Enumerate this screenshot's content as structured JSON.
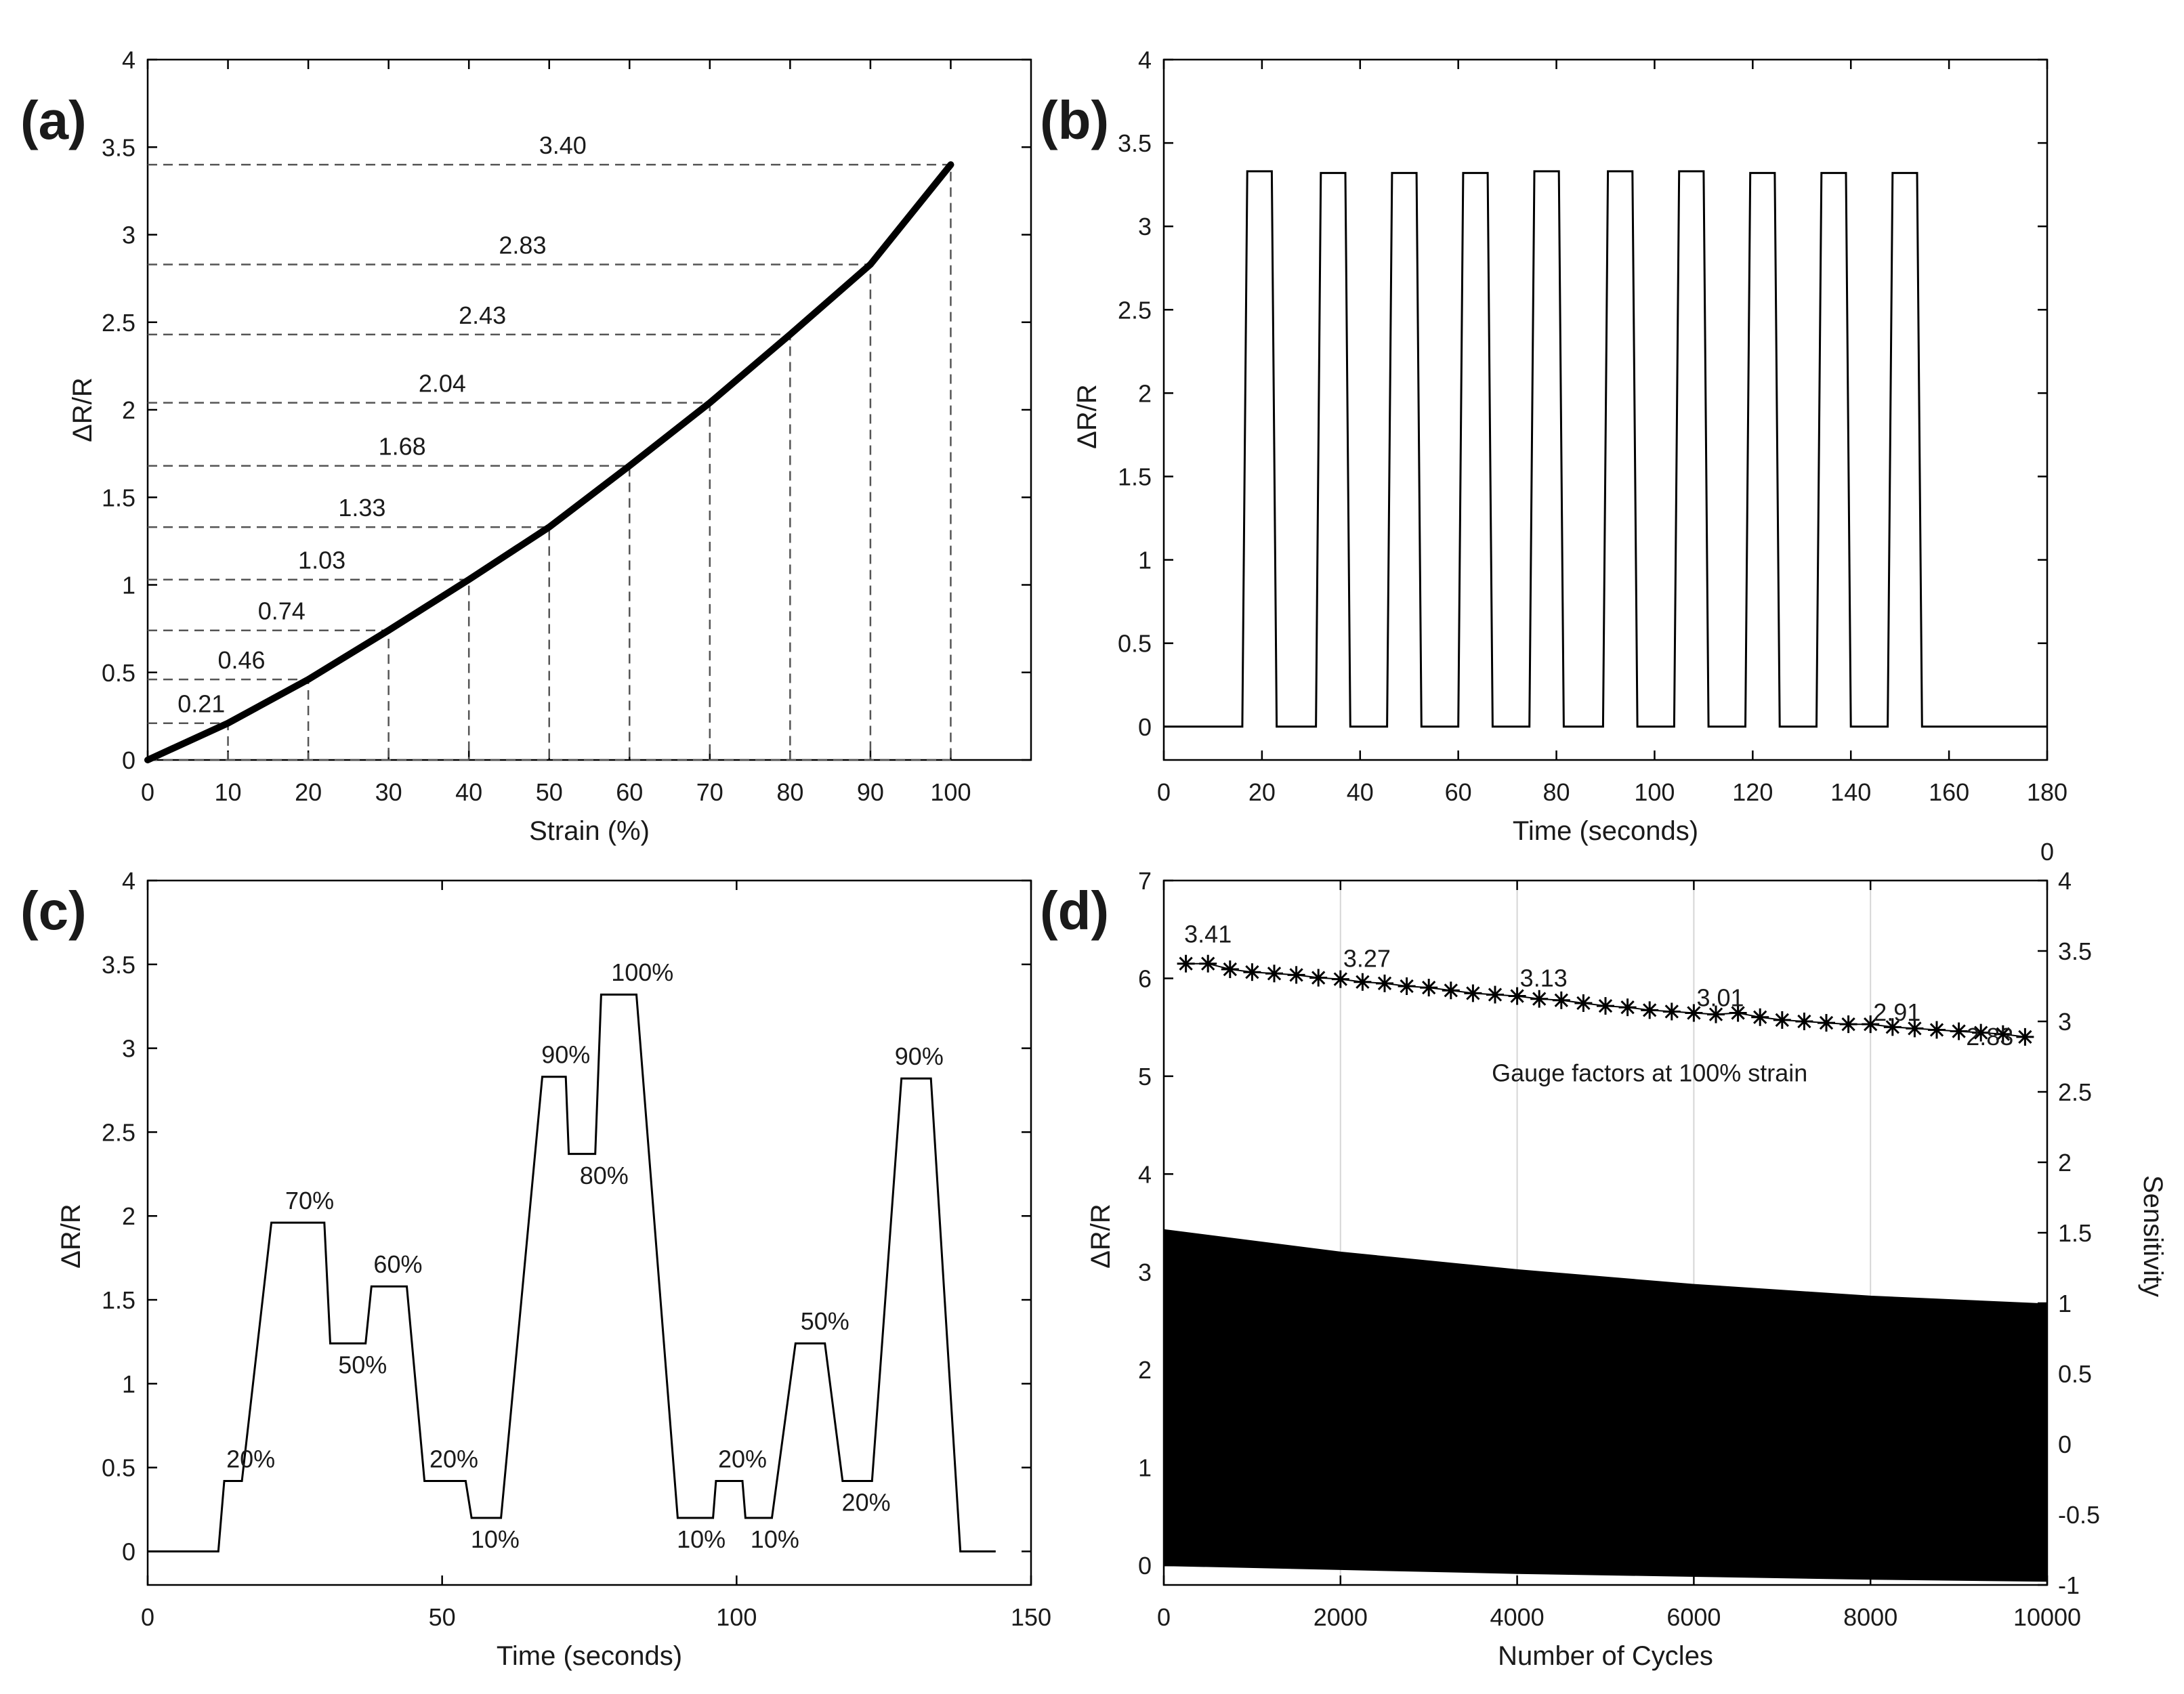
{
  "colors": {
    "line": "#000000",
    "guide": "#555555",
    "grid": "#d6d6d6",
    "background": "#ffffff"
  },
  "chart_data": [
    {
      "panel": "(a)",
      "type": "line",
      "xlabel": "Strain (%)",
      "ylabel": "ΔR/R",
      "xlim": [
        0,
        110
      ],
      "ylim": [
        0,
        4
      ],
      "xticks": [
        0,
        10,
        20,
        30,
        40,
        50,
        60,
        70,
        80,
        90,
        100
      ],
      "yticks": [
        0,
        0.5,
        1,
        1.5,
        2,
        2.5,
        3,
        3.5,
        4
      ],
      "grid": false,
      "series": [
        {
          "x": [
            0,
            10,
            20,
            30,
            40,
            50,
            60,
            70,
            80,
            90,
            100
          ],
          "y": [
            0,
            0.21,
            0.46,
            0.74,
            1.03,
            1.33,
            1.68,
            2.04,
            2.43,
            2.83,
            3.4
          ]
        }
      ],
      "annotations": [
        {
          "x": 10,
          "y": 0.21,
          "text": "0.21"
        },
        {
          "x": 20,
          "y": 0.46,
          "text": "0.46"
        },
        {
          "x": 30,
          "y": 0.74,
          "text": "0.74"
        },
        {
          "x": 40,
          "y": 1.03,
          "text": "1.03"
        },
        {
          "x": 50,
          "y": 1.33,
          "text": "1.33"
        },
        {
          "x": 60,
          "y": 1.68,
          "text": "1.68"
        },
        {
          "x": 70,
          "y": 2.04,
          "text": "2.04"
        },
        {
          "x": 80,
          "y": 2.43,
          "text": "2.43"
        },
        {
          "x": 90,
          "y": 2.83,
          "text": "2.83"
        },
        {
          "x": 100,
          "y": 3.4,
          "text": "3.40"
        }
      ]
    },
    {
      "panel": "(b)",
      "type": "line",
      "xlabel": "Time (seconds)",
      "ylabel": "ΔR/R",
      "xlim": [
        0,
        180
      ],
      "ylim": [
        -0.2,
        4
      ],
      "xticks": [
        0,
        20,
        40,
        60,
        80,
        100,
        120,
        140,
        160,
        180
      ],
      "yticks": [
        0,
        0.5,
        1,
        1.5,
        2,
        2.5,
        3,
        3.5,
        4
      ],
      "grid": false,
      "series": [
        {
          "x": [
            0,
            16,
            17,
            22,
            23,
            31,
            32,
            37,
            38,
            45.5,
            46.5,
            51.5,
            52.5,
            60,
            61,
            66,
            67,
            74.5,
            75.5,
            80.5,
            81.5,
            89.5,
            90.5,
            95.5,
            96.5,
            104,
            105,
            110,
            111,
            118.5,
            119.5,
            124.5,
            125.5,
            133,
            134,
            139,
            140,
            147.5,
            148.5,
            153.5,
            154.5,
            180
          ],
          "y": [
            0,
            0,
            3.33,
            3.33,
            0,
            0,
            3.32,
            3.32,
            0,
            0,
            3.32,
            3.32,
            0,
            0,
            3.32,
            3.32,
            0,
            0,
            3.33,
            3.33,
            0,
            0,
            3.33,
            3.33,
            0,
            0,
            3.33,
            3.33,
            0,
            0,
            3.32,
            3.32,
            0,
            0,
            3.32,
            3.32,
            0,
            0,
            3.32,
            3.32,
            0,
            0
          ]
        }
      ]
    },
    {
      "panel": "(c)",
      "type": "line",
      "xlabel": "Time (seconds)",
      "ylabel": "ΔR/R",
      "xlim": [
        0,
        150
      ],
      "ylim": [
        -0.2,
        4
      ],
      "xticks": [
        0,
        50,
        100,
        150
      ],
      "yticks": [
        0,
        0.5,
        1,
        1.5,
        2,
        2.5,
        3,
        3.5,
        4
      ],
      "grid": false,
      "series": [
        {
          "x": [
            0,
            12,
            13,
            16,
            21,
            30,
            31,
            37,
            38,
            44,
            47,
            54,
            55,
            60,
            67,
            71,
            71.5,
            76,
            77,
            83,
            90,
            96,
            96.5,
            101,
            101.5,
            106,
            110,
            115,
            118,
            123,
            128,
            133,
            138,
            144
          ],
          "y": [
            0,
            0,
            0.42,
            0.42,
            1.96,
            1.96,
            1.24,
            1.24,
            1.58,
            1.58,
            0.42,
            0.42,
            0.2,
            0.2,
            2.83,
            2.83,
            2.37,
            2.37,
            3.32,
            3.32,
            0.2,
            0.2,
            0.42,
            0.42,
            0.2,
            0.2,
            1.24,
            1.24,
            0.42,
            0.42,
            2.82,
            2.82,
            0,
            0
          ]
        }
      ],
      "annotations": [
        {
          "x": 17.5,
          "y": 0.55,
          "text": "20%"
        },
        {
          "x": 27.5,
          "y": 2.09,
          "text": "70%"
        },
        {
          "x": 36.5,
          "y": 1.11,
          "text": "50%"
        },
        {
          "x": 42.5,
          "y": 1.71,
          "text": "60%"
        },
        {
          "x": 52,
          "y": 0.55,
          "text": "20%"
        },
        {
          "x": 59,
          "y": 0.07,
          "text": "10%"
        },
        {
          "x": 71,
          "y": 2.96,
          "text": "90%"
        },
        {
          "x": 77.5,
          "y": 2.24,
          "text": "80%"
        },
        {
          "x": 84,
          "y": 3.45,
          "text": "100%"
        },
        {
          "x": 94,
          "y": 0.07,
          "text": "10%"
        },
        {
          "x": 101,
          "y": 0.55,
          "text": "20%"
        },
        {
          "x": 106.5,
          "y": 0.07,
          "text": "10%"
        },
        {
          "x": 115,
          "y": 1.37,
          "text": "50%"
        },
        {
          "x": 122,
          "y": 0.29,
          "text": "20%"
        },
        {
          "x": 131,
          "y": 2.95,
          "text": "90%"
        }
      ]
    },
    {
      "panel": "(d)",
      "type": "area",
      "xlabel": "Number of Cycles",
      "ylabel": "ΔR/R",
      "y2label": "Sensitivity",
      "xlim": [
        0,
        10000
      ],
      "ylim": [
        -0.2,
        7
      ],
      "y2lim": [
        -1,
        4
      ],
      "xticks": [
        0,
        2000,
        4000,
        6000,
        8000,
        10000
      ],
      "yticks": [
        0,
        1,
        2,
        3,
        4,
        5,
        6,
        7
      ],
      "y2ticks": [
        -1,
        -0.5,
        0,
        0.5,
        1,
        1.5,
        2,
        2.5,
        3,
        3.5,
        4
      ],
      "y2top_extra_label": "0",
      "grid": true,
      "series": [
        {
          "name": "upper envelope",
          "x": [
            0,
            2000,
            4000,
            6000,
            8000,
            10000
          ],
          "y": [
            3.43,
            3.2,
            3.02,
            2.87,
            2.75,
            2.67
          ]
        },
        {
          "name": "lower envelope",
          "x": [
            0,
            2000,
            4000,
            6000,
            8000,
            10000
          ],
          "y": [
            0.0,
            -0.04,
            -0.08,
            -0.11,
            -0.14,
            -0.16
          ]
        }
      ],
      "gauge_series": {
        "label": "Gauge factors at 100% strain",
        "x": [
          250,
          500,
          750,
          1000,
          1250,
          1500,
          1750,
          2000,
          2250,
          2500,
          2750,
          3000,
          3250,
          3500,
          3750,
          4000,
          4250,
          4500,
          4750,
          5000,
          5250,
          5500,
          5750,
          6000,
          6250,
          6500,
          6750,
          7000,
          7250,
          7500,
          7750,
          8000,
          8250,
          8500,
          8750,
          9000,
          9250,
          9500,
          9750
        ],
        "y": [
          3.41,
          3.41,
          3.37,
          3.35,
          3.34,
          3.33,
          3.31,
          3.3,
          3.28,
          3.27,
          3.25,
          3.24,
          3.22,
          3.2,
          3.19,
          3.18,
          3.16,
          3.15,
          3.13,
          3.11,
          3.1,
          3.08,
          3.07,
          3.06,
          3.05,
          3.06,
          3.03,
          3.01,
          3.0,
          2.99,
          2.98,
          2.98,
          2.96,
          2.95,
          2.94,
          2.93,
          2.92,
          2.91,
          2.89
        ]
      },
      "annotations": [
        {
          "x": 500,
          "y": 6.45,
          "text": "3.41"
        },
        {
          "x": 2300,
          "y": 6.2,
          "text": "3.27"
        },
        {
          "x": 4300,
          "y": 6.0,
          "text": "3.13"
        },
        {
          "x": 6300,
          "y": 5.8,
          "text": "3.01"
        },
        {
          "x": 8300,
          "y": 5.65,
          "text": "2.91"
        },
        {
          "x": 9350,
          "y": 5.4,
          "text": "2.83"
        },
        {
          "x": 5500,
          "y": 5.03,
          "text": "Gauge factors at 100% strain"
        }
      ]
    }
  ]
}
